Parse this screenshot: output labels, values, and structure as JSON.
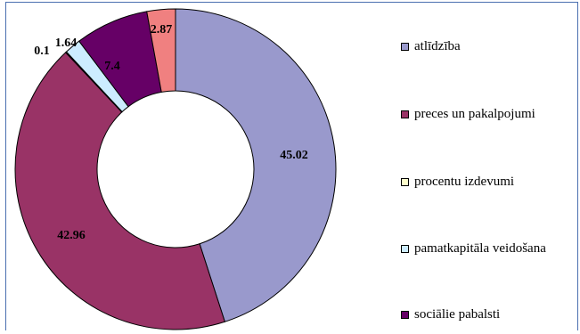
{
  "chart_data": {
    "type": "pie",
    "variant": "donut",
    "slices": [
      {
        "label": "atlīdzība",
        "value": 45.02,
        "value_label": "45.02",
        "color": "#9999cc"
      },
      {
        "label": "preces un pakalpojumi",
        "value": 42.96,
        "value_label": "42.96",
        "color": "#993366"
      },
      {
        "label": "procentu izdevumi",
        "value": 0.1,
        "value_label": "0.1",
        "color": "#ffffcc"
      },
      {
        "label": "pamatkapitāla veidošana",
        "value": 1.64,
        "value_label": "1.64",
        "color": "#ccecff"
      },
      {
        "label": "sociālie pabalsti",
        "value": 7.4,
        "value_label": "7.4",
        "color": "#660066"
      },
      {
        "label": "",
        "value": 2.87,
        "value_label": "2.87",
        "color": "#f08080"
      }
    ],
    "legend_position": "right",
    "legend_entries": [
      "atlīdzība",
      "preces un pakalpojumi",
      "procentu izdevumi",
      "pamatkapitāla veidošana",
      "sociālie pabalsti"
    ],
    "start_angle_deg": 0,
    "direction": "clockwise"
  }
}
